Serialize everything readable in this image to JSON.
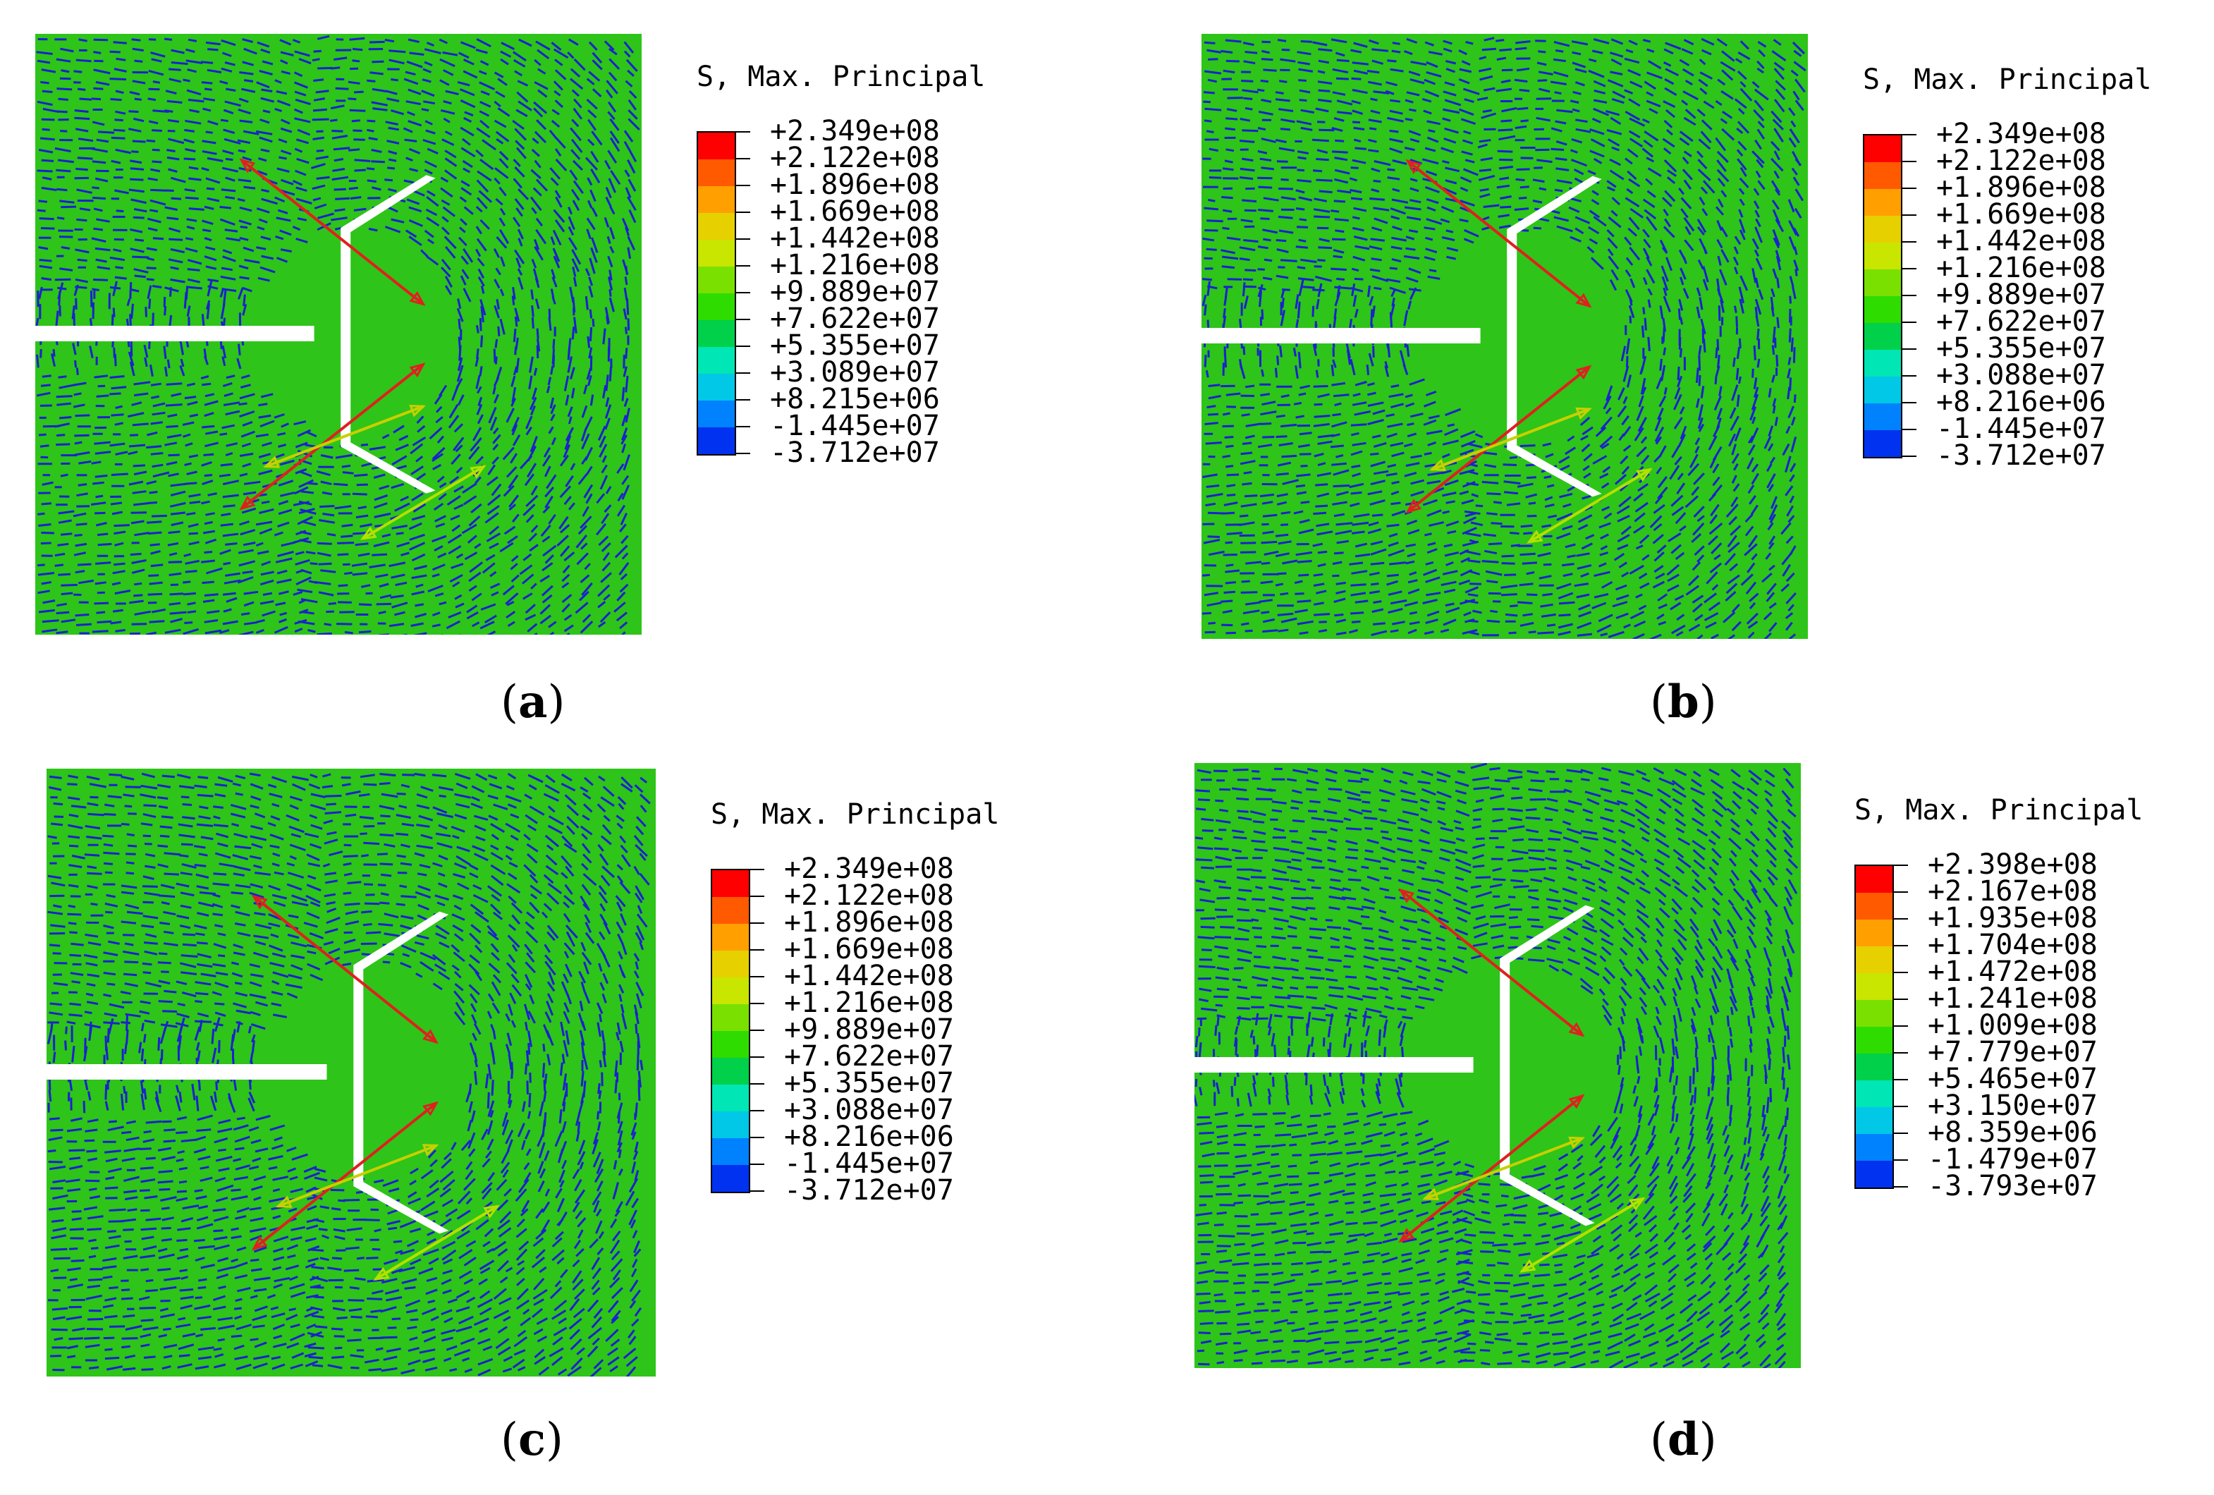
{
  "panels": [
    {
      "caption_letter": "a",
      "legend_title": "S, Max. Principal",
      "legend_values": [
        "+2.349e+08",
        "+2.122e+08",
        "+1.896e+08",
        "+1.669e+08",
        "+1.442e+08",
        "+1.216e+08",
        "+9.889e+07",
        "+7.622e+07",
        "+5.355e+07",
        "+3.089e+07",
        "+8.215e+06",
        "-1.445e+07",
        "-3.712e+07"
      ]
    },
    {
      "caption_letter": "b",
      "legend_title": "S, Max. Principal",
      "legend_values": [
        "+2.349e+08",
        "+2.122e+08",
        "+1.896e+08",
        "+1.669e+08",
        "+1.442e+08",
        "+1.216e+08",
        "+9.889e+07",
        "+7.622e+07",
        "+5.355e+07",
        "+3.088e+07",
        "+8.216e+06",
        "-1.445e+07",
        "-3.712e+07"
      ]
    },
    {
      "caption_letter": "c",
      "legend_title": "S, Max. Principal",
      "legend_values": [
        "+2.349e+08",
        "+2.122e+08",
        "+1.896e+08",
        "+1.669e+08",
        "+1.442e+08",
        "+1.216e+08",
        "+9.889e+07",
        "+7.622e+07",
        "+5.355e+07",
        "+3.088e+07",
        "+8.216e+06",
        "-1.445e+07",
        "-3.712e+07"
      ]
    },
    {
      "caption_letter": "d",
      "legend_title": "S, Max. Principal",
      "legend_values": [
        "+2.398e+08",
        "+2.167e+08",
        "+1.935e+08",
        "+1.704e+08",
        "+1.472e+08",
        "+1.241e+08",
        "+1.009e+08",
        "+7.779e+07",
        "+5.465e+07",
        "+3.150e+07",
        "+8.359e+06",
        "-1.479e+07",
        "-3.793e+07"
      ]
    }
  ],
  "colors": {
    "field": "#2ec419",
    "vector": "#1a22cc",
    "legend_scale": [
      "#ff0000",
      "#ff5a00",
      "#ffa000",
      "#e6d000",
      "#c8e600",
      "#7ae000",
      "#2edc00",
      "#00d04a",
      "#00e6b4",
      "#00c8e6",
      "#0082ff",
      "#0032f0",
      "#0000ff"
    ]
  }
}
